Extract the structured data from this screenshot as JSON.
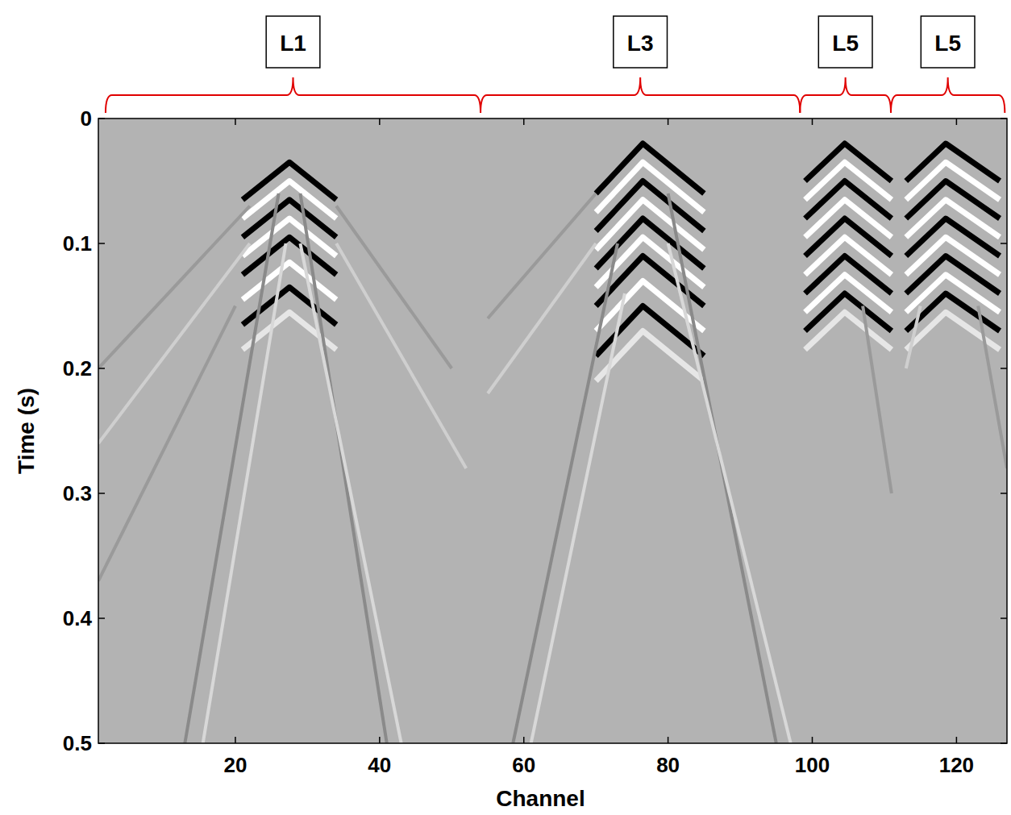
{
  "chart_data": {
    "type": "line",
    "x_label": "Channel",
    "y_label": "Time (s)",
    "xlim": [
      1,
      127
    ],
    "ylim": [
      0,
      0.5
    ],
    "xticks": [
      20,
      40,
      60,
      80,
      100,
      120
    ],
    "yticks": [
      0,
      0.1,
      0.2,
      0.3,
      0.4,
      0.5
    ],
    "annotations": [
      {
        "text": "L1",
        "x": [
          2,
          54
        ]
      },
      {
        "text": "L3",
        "x": [
          54,
          98.3
        ]
      },
      {
        "text": "L5",
        "x": [
          98.3,
          110.9
        ]
      },
      {
        "text": "L5",
        "x": [
          110.9,
          126.7
        ]
      }
    ],
    "series": [
      {
        "x": [
          21,
          27.5,
          34
        ],
        "values": [
          0.065,
          0.035,
          0.065
        ],
        "color": "#000000"
      },
      {
        "x": [
          21,
          27.5,
          34
        ],
        "values": [
          0.08,
          0.05,
          0.08
        ],
        "color": "#ffffff"
      },
      {
        "x": [
          21,
          27.5,
          34
        ],
        "values": [
          0.095,
          0.065,
          0.095
        ],
        "color": "#000000"
      },
      {
        "x": [
          21,
          27.5,
          34
        ],
        "values": [
          0.11,
          0.08,
          0.11
        ],
        "color": "#ffffff"
      },
      {
        "x": [
          21,
          27.5,
          34
        ],
        "values": [
          0.125,
          0.095,
          0.125
        ],
        "color": "#000000"
      },
      {
        "x": [
          21,
          27.5,
          34
        ],
        "values": [
          0.145,
          0.115,
          0.145
        ],
        "color": "#ffffff"
      },
      {
        "x": [
          21,
          27.5,
          34
        ],
        "values": [
          0.165,
          0.135,
          0.165
        ],
        "color": "#000000"
      },
      {
        "x": [
          21,
          27.5,
          34
        ],
        "values": [
          0.185,
          0.155,
          0.185
        ],
        "color": "#e6e6e6"
      },
      {
        "x": [
          26,
          13
        ],
        "values": [
          0.06,
          0.5
        ],
        "color": "#8a8a8a"
      },
      {
        "x": [
          27,
          15.5
        ],
        "values": [
          0.1,
          0.5
        ],
        "color": "#d8d8d8"
      },
      {
        "x": [
          29,
          41
        ],
        "values": [
          0.06,
          0.5
        ],
        "color": "#8a8a8a"
      },
      {
        "x": [
          29,
          43
        ],
        "values": [
          0.1,
          0.5
        ],
        "color": "#d8d8d8"
      },
      {
        "x": [
          22,
          1
        ],
        "values": [
          0.07,
          0.2
        ],
        "color": "#9a9a9a"
      },
      {
        "x": [
          22,
          1
        ],
        "values": [
          0.1,
          0.26
        ],
        "color": "#cfcfcf"
      },
      {
        "x": [
          20,
          1
        ],
        "values": [
          0.15,
          0.37
        ],
        "color": "#9a9a9a"
      },
      {
        "x": [
          34,
          50
        ],
        "values": [
          0.07,
          0.2
        ],
        "color": "#9a9a9a"
      },
      {
        "x": [
          34,
          52
        ],
        "values": [
          0.1,
          0.28
        ],
        "color": "#cfcfcf"
      },
      {
        "x": [
          70,
          76.5,
          85
        ],
        "values": [
          0.06,
          0.02,
          0.06
        ],
        "color": "#000000"
      },
      {
        "x": [
          70,
          76.5,
          85
        ],
        "values": [
          0.075,
          0.035,
          0.075
        ],
        "color": "#ffffff"
      },
      {
        "x": [
          70,
          76.5,
          85
        ],
        "values": [
          0.09,
          0.05,
          0.09
        ],
        "color": "#000000"
      },
      {
        "x": [
          70,
          76.5,
          85
        ],
        "values": [
          0.105,
          0.065,
          0.105
        ],
        "color": "#ffffff"
      },
      {
        "x": [
          70,
          76.5,
          85
        ],
        "values": [
          0.12,
          0.08,
          0.12
        ],
        "color": "#000000"
      },
      {
        "x": [
          70,
          76.5,
          85
        ],
        "values": [
          0.135,
          0.095,
          0.135
        ],
        "color": "#ffffff"
      },
      {
        "x": [
          70,
          76.5,
          85
        ],
        "values": [
          0.15,
          0.11,
          0.15
        ],
        "color": "#000000"
      },
      {
        "x": [
          70,
          76.5,
          85
        ],
        "values": [
          0.17,
          0.13,
          0.17
        ],
        "color": "#ffffff"
      },
      {
        "x": [
          70,
          76.5,
          85
        ],
        "values": [
          0.19,
          0.15,
          0.19
        ],
        "color": "#000000"
      },
      {
        "x": [
          70,
          76.5,
          85
        ],
        "values": [
          0.21,
          0.17,
          0.21
        ],
        "color": "#e6e6e6"
      },
      {
        "x": [
          73,
          58.5
        ],
        "values": [
          0.1,
          0.5
        ],
        "color": "#8a8a8a"
      },
      {
        "x": [
          74,
          61
        ],
        "values": [
          0.14,
          0.5
        ],
        "color": "#d8d8d8"
      },
      {
        "x": [
          80,
          95
        ],
        "values": [
          0.06,
          0.5
        ],
        "color": "#8a8a8a"
      },
      {
        "x": [
          80,
          97
        ],
        "values": [
          0.1,
          0.5
        ],
        "color": "#d8d8d8"
      },
      {
        "x": [
          70,
          55
        ],
        "values": [
          0.06,
          0.16
        ],
        "color": "#9a9a9a"
      },
      {
        "x": [
          70,
          55
        ],
        "values": [
          0.1,
          0.22
        ],
        "color": "#cfcfcf"
      },
      {
        "x": [
          99,
          104.5,
          111
        ],
        "values": [
          0.05,
          0.02,
          0.05
        ],
        "color": "#000000"
      },
      {
        "x": [
          99,
          104.5,
          111
        ],
        "values": [
          0.065,
          0.035,
          0.065
        ],
        "color": "#ffffff"
      },
      {
        "x": [
          99,
          104.5,
          111
        ],
        "values": [
          0.08,
          0.05,
          0.08
        ],
        "color": "#000000"
      },
      {
        "x": [
          99,
          104.5,
          111
        ],
        "values": [
          0.095,
          0.065,
          0.095
        ],
        "color": "#ffffff"
      },
      {
        "x": [
          99,
          104.5,
          111
        ],
        "values": [
          0.11,
          0.08,
          0.11
        ],
        "color": "#000000"
      },
      {
        "x": [
          99,
          104.5,
          111
        ],
        "values": [
          0.125,
          0.095,
          0.125
        ],
        "color": "#ffffff"
      },
      {
        "x": [
          99,
          104.5,
          111
        ],
        "values": [
          0.14,
          0.11,
          0.14
        ],
        "color": "#000000"
      },
      {
        "x": [
          99,
          104.5,
          111
        ],
        "values": [
          0.155,
          0.125,
          0.155
        ],
        "color": "#ffffff"
      },
      {
        "x": [
          99,
          104.5,
          111
        ],
        "values": [
          0.17,
          0.14,
          0.17
        ],
        "color": "#000000"
      },
      {
        "x": [
          99,
          104.5,
          111
        ],
        "values": [
          0.185,
          0.155,
          0.185
        ],
        "color": "#e6e6e6"
      },
      {
        "x": [
          107,
          111
        ],
        "values": [
          0.15,
          0.3
        ],
        "color": "#9a9a9a"
      },
      {
        "x": [
          113,
          118.5,
          126
        ],
        "values": [
          0.05,
          0.02,
          0.05
        ],
        "color": "#000000"
      },
      {
        "x": [
          113,
          118.5,
          126
        ],
        "values": [
          0.065,
          0.035,
          0.065
        ],
        "color": "#ffffff"
      },
      {
        "x": [
          113,
          118.5,
          126
        ],
        "values": [
          0.08,
          0.05,
          0.08
        ],
        "color": "#000000"
      },
      {
        "x": [
          113,
          118.5,
          126
        ],
        "values": [
          0.095,
          0.065,
          0.095
        ],
        "color": "#ffffff"
      },
      {
        "x": [
          113,
          118.5,
          126
        ],
        "values": [
          0.11,
          0.08,
          0.11
        ],
        "color": "#000000"
      },
      {
        "x": [
          113,
          118.5,
          126
        ],
        "values": [
          0.125,
          0.095,
          0.125
        ],
        "color": "#ffffff"
      },
      {
        "x": [
          113,
          118.5,
          126
        ],
        "values": [
          0.14,
          0.11,
          0.14
        ],
        "color": "#000000"
      },
      {
        "x": [
          113,
          118.5,
          126
        ],
        "values": [
          0.155,
          0.125,
          0.155
        ],
        "color": "#ffffff"
      },
      {
        "x": [
          113,
          118.5,
          126
        ],
        "values": [
          0.17,
          0.14,
          0.17
        ],
        "color": "#000000"
      },
      {
        "x": [
          113,
          118.5,
          126
        ],
        "values": [
          0.185,
          0.155,
          0.185
        ],
        "color": "#e6e6e6"
      },
      {
        "x": [
          123,
          127
        ],
        "values": [
          0.15,
          0.28
        ],
        "color": "#9a9a9a"
      },
      {
        "x": [
          115,
          113
        ],
        "values": [
          0.15,
          0.2
        ],
        "color": "#cfcfcf"
      }
    ]
  }
}
